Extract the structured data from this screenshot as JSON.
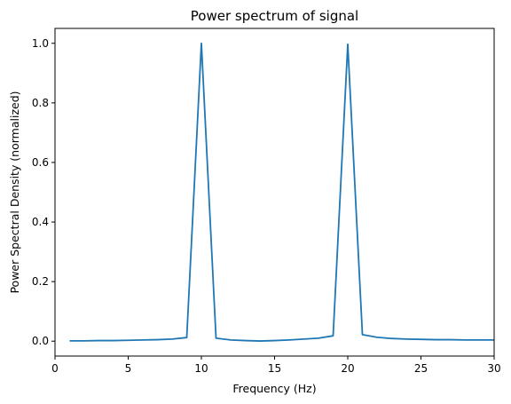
{
  "chart_data": {
    "type": "line",
    "title": "Power spectrum of signal",
    "xlabel": "Frequency (Hz)",
    "ylabel": "Power Spectral Density (normalized)",
    "xlim": [
      0,
      30
    ],
    "ylim": [
      -0.05,
      1.05
    ],
    "xticks": [
      0,
      5,
      10,
      15,
      20,
      25,
      30
    ],
    "yticks": [
      0.0,
      0.2,
      0.4,
      0.6,
      0.8,
      1.0
    ],
    "xtick_labels": [
      "0",
      "5",
      "10",
      "15",
      "20",
      "25",
      "30"
    ],
    "ytick_labels": [
      "0.0",
      "0.2",
      "0.4",
      "0.6",
      "0.8",
      "1.0"
    ],
    "grid": false,
    "series": [
      {
        "color": "#1f77b4",
        "x": [
          1,
          2,
          3,
          4,
          5,
          6,
          7,
          8,
          9,
          10,
          11,
          12,
          13,
          14,
          15,
          16,
          17,
          18,
          19,
          20,
          21,
          22,
          23,
          24,
          25,
          26,
          27,
          28,
          29,
          30
        ],
        "y": [
          0.001,
          0.001,
          0.002,
          0.002,
          0.003,
          0.004,
          0.005,
          0.007,
          0.012,
          1.0,
          0.01,
          0.004,
          0.002,
          0.0005,
          0.002,
          0.004,
          0.007,
          0.01,
          0.018,
          0.997,
          0.022,
          0.013,
          0.009,
          0.007,
          0.006,
          0.005,
          0.005,
          0.004,
          0.004,
          0.004
        ]
      }
    ]
  }
}
